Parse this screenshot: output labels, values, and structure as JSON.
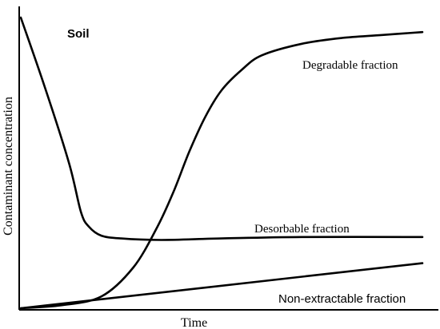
{
  "chart_data": {
    "type": "line",
    "title": "Soil",
    "xlabel": "Time",
    "ylabel": "Contaminant concentration",
    "grid": false,
    "legend": "none",
    "x_ticks": "none",
    "y_ticks": "none",
    "xlim": [
      0,
      100
    ],
    "ylim": [
      0,
      100
    ],
    "series": [
      {
        "name": "Degradable fraction",
        "color": "#000000",
        "x": [
          0,
          10,
          20,
          28,
          34,
          38,
          42,
          46,
          50,
          55,
          60,
          70,
          80,
          90,
          100
        ],
        "y": [
          0,
          1,
          4,
          14,
          28,
          40,
          54,
          66,
          75,
          82,
          87,
          91,
          93,
          94,
          95
        ]
      },
      {
        "name": "Desorbable fraction",
        "color": "#000000",
        "x": [
          0,
          6,
          12,
          15,
          17,
          20,
          25,
          35,
          50,
          70,
          100
        ],
        "y": [
          100,
          76,
          50,
          33,
          28,
          25,
          24,
          23.5,
          24,
          24.5,
          24.5
        ]
      },
      {
        "name": "Non-extractable fraction",
        "color": "#000000",
        "x": [
          0,
          100
        ],
        "y": [
          0,
          15.5
        ]
      }
    ]
  }
}
